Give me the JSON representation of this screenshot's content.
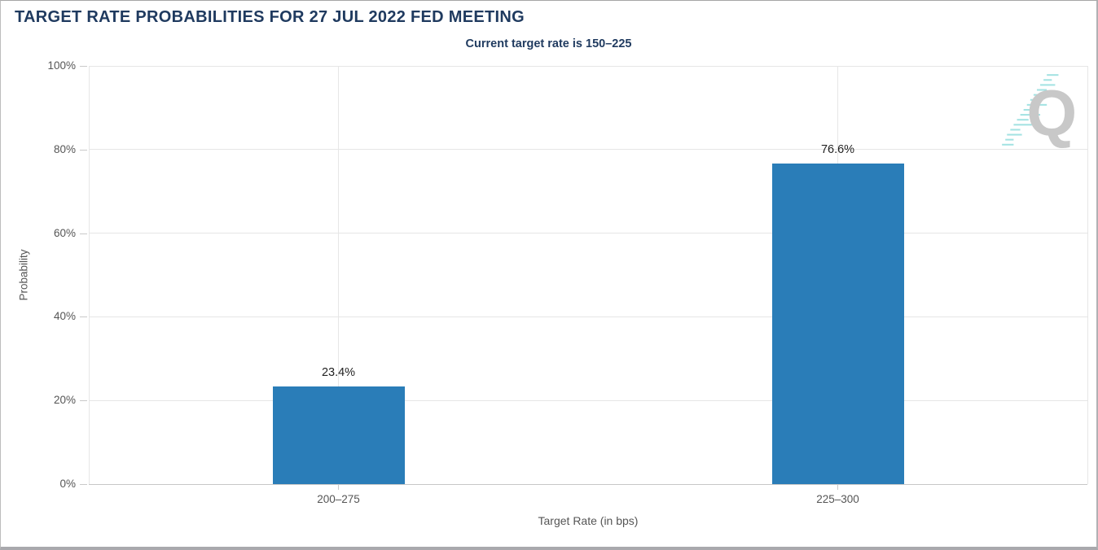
{
  "header": {
    "title": "TARGET RATE PROBABILITIES FOR 27 JUL 2022 FED MEETING",
    "subtitle": "Current target rate is 150–225"
  },
  "colors": {
    "title": "#1f3a5f",
    "bar": "#2a7db8",
    "grid": "#e6e6e6",
    "axis_text": "#555555",
    "logo_q": "#c8c8c8",
    "logo_dash": "#93dede"
  },
  "chart_data": {
    "type": "bar",
    "categories": [
      "200–275",
      "225–300"
    ],
    "values": [
      23.4,
      76.6
    ],
    "value_labels": [
      "23.4%",
      "76.6%"
    ],
    "title": "TARGET RATE PROBABILITIES FOR 27 JUL 2022 FED MEETING",
    "subtitle": "Current target rate is 150–225",
    "xlabel": "Target Rate (in bps)",
    "ylabel": "Probability",
    "ylim": [
      0,
      100
    ],
    "ytick_step": 20,
    "ytick_labels": [
      "0%",
      "20%",
      "40%",
      "60%",
      "80%",
      "100%"
    ],
    "grid": true,
    "legend": "none"
  },
  "logo": {
    "letter": "Q"
  }
}
